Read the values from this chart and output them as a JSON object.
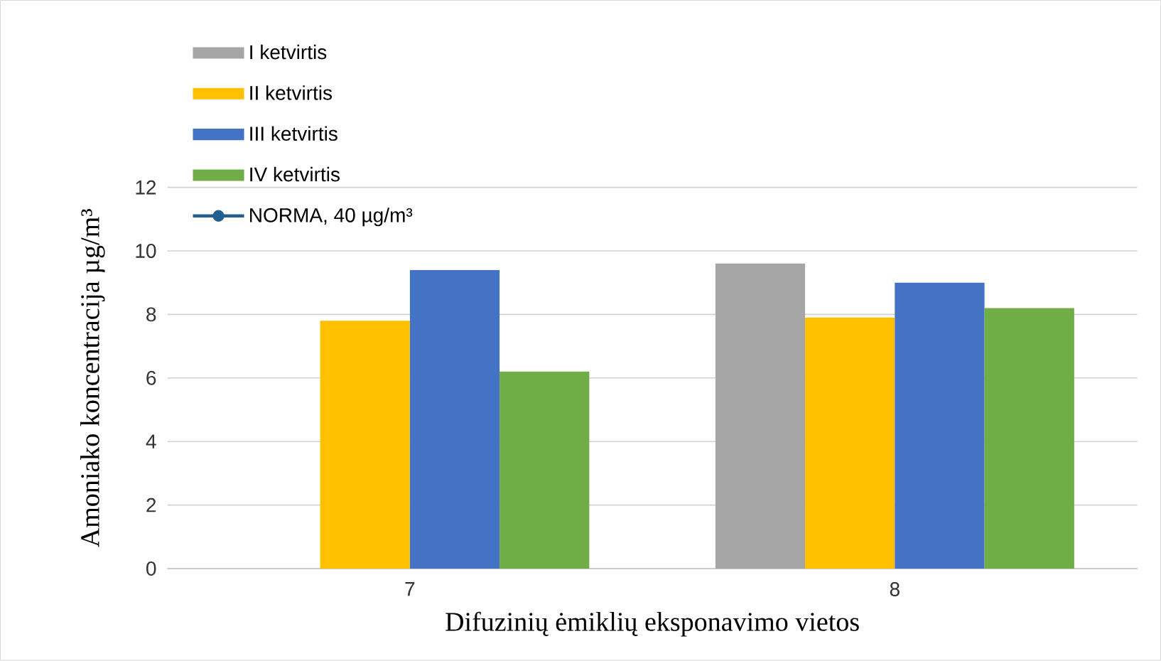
{
  "chart_data": {
    "type": "bar",
    "xlabel": "Difuzinių ėmiklių eksponavimo vietos",
    "ylabel": "Amoniako koncentracija µg/m³",
    "categories": [
      "7",
      "8"
    ],
    "series": [
      {
        "name": "I ketvirtis",
        "color": "#a5a5a5",
        "values": [
          null,
          9.6
        ]
      },
      {
        "name": "II ketvirtis",
        "color": "#ffc000",
        "values": [
          7.8,
          7.9
        ]
      },
      {
        "name": "III ketvirtis",
        "color": "#4472c4",
        "values": [
          9.4,
          9.0
        ]
      },
      {
        "name": "IV ketvirtis",
        "color": "#70ad47",
        "values": [
          6.2,
          8.2
        ]
      },
      {
        "name": "NORMA, 40 µg/m³",
        "type": "line",
        "marker": "circle",
        "color": "#255e91",
        "values": [
          null,
          null
        ]
      }
    ],
    "ylim": [
      0,
      12
    ],
    "yticks": [
      0,
      2,
      4,
      6,
      8,
      10,
      12
    ],
    "grid": "y",
    "legend": "top left"
  }
}
